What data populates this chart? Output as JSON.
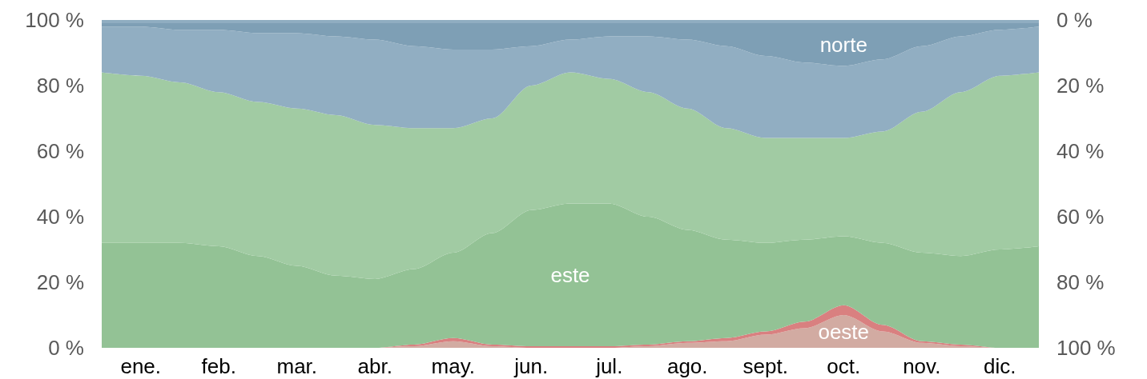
{
  "chart_data": {
    "type": "area",
    "stacked": true,
    "categories": [
      null,
      "ene.",
      null,
      "feb.",
      null,
      "mar.",
      null,
      "abr.",
      null,
      "may.",
      null,
      "jun.",
      null,
      "jul.",
      null,
      "ago.",
      null,
      "sept.",
      null,
      "oct.",
      null,
      "nov.",
      null,
      "dic.",
      null
    ],
    "series": [
      {
        "name": "oeste",
        "color": "#d2aba2",
        "values": [
          0,
          0,
          0,
          0,
          0,
          0,
          0,
          0,
          0.5,
          2,
          0.5,
          0,
          0,
          0,
          0.5,
          1.5,
          2,
          4,
          6,
          10,
          5,
          1.5,
          0.5,
          0,
          0
        ]
      },
      {
        "color": "#d98080",
        "values": [
          0,
          0,
          0,
          0,
          0,
          0,
          0,
          0,
          0.5,
          1,
          0.5,
          0.5,
          0.5,
          0.5,
          0.5,
          0.5,
          1,
          1,
          2,
          3,
          2,
          0.5,
          0.5,
          0,
          0
        ]
      },
      {
        "name": "este",
        "color": "#93c295",
        "values": [
          32,
          32,
          32,
          31,
          28,
          25,
          22,
          21,
          23,
          26,
          34,
          41.5,
          43.5,
          43.5,
          39,
          34,
          30,
          27,
          25,
          21,
          25,
          27,
          27,
          30,
          31
        ]
      },
      {
        "color": "#a1cba3",
        "values": [
          52,
          51,
          49,
          47,
          47,
          48,
          49,
          47,
          43,
          38,
          35,
          38,
          40,
          38,
          38,
          37,
          34,
          32,
          31,
          30,
          34,
          43,
          50,
          53,
          53
        ]
      },
      {
        "color": "#91aec2",
        "values": [
          14,
          15,
          16,
          19,
          21,
          23,
          24,
          26,
          25,
          24,
          21,
          12,
          10,
          13,
          17,
          21,
          25,
          25,
          23,
          22,
          22,
          20,
          17,
          14,
          14
        ]
      },
      {
        "name": "norte",
        "color": "#7e9fb5",
        "values": [
          1,
          1,
          2,
          2,
          3,
          3,
          4,
          5,
          7,
          8,
          8,
          7,
          5,
          4,
          4,
          5,
          7,
          10,
          12,
          13,
          11,
          7,
          4,
          2,
          1
        ]
      },
      {
        "color": "#8fadc1",
        "values": [
          1,
          1,
          1,
          1,
          1,
          1,
          1,
          1,
          1,
          1,
          1,
          1,
          1,
          1,
          1,
          1,
          1,
          1,
          1,
          1,
          1,
          1,
          1,
          1,
          1
        ]
      }
    ],
    "ylim": [
      0,
      100
    ],
    "yticks": [
      {
        "value": 0,
        "label": "0 %"
      },
      {
        "value": 20,
        "label": "20 %"
      },
      {
        "value": 40,
        "label": "40 %"
      },
      {
        "value": 60,
        "label": "60 %"
      },
      {
        "value": 80,
        "label": "80 %"
      },
      {
        "value": 100,
        "label": "100 %"
      }
    ],
    "y2lim": [
      100,
      0
    ],
    "y2ticks": [
      {
        "value": 0,
        "label": "0 %"
      },
      {
        "value": 20,
        "label": "20 %"
      },
      {
        "value": 40,
        "label": "40 %"
      },
      {
        "value": 60,
        "label": "60 %"
      },
      {
        "value": 80,
        "label": "80 %"
      },
      {
        "value": 100,
        "label": "100 %"
      }
    ],
    "grid": false,
    "legend": false
  }
}
